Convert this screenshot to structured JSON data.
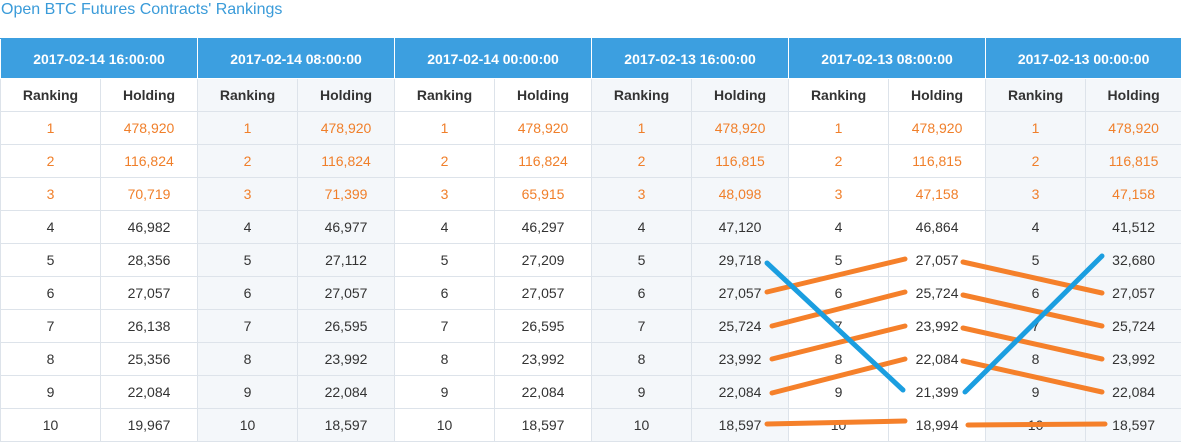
{
  "title": "Open BTC Futures Contracts' Rankings",
  "headers": {
    "ranking": "Ranking",
    "holding": "Holding"
  },
  "colors": {
    "title_link": "#3a9bd9",
    "header_bg": "#3c9fe0",
    "top3_text": "#f07f2a",
    "annotation_orange": "#f5802a",
    "annotation_blue": "#1b9ee0"
  },
  "columns": [
    {
      "date": "2017-02-14 16:00:00",
      "rows": [
        [
          "1",
          "478,920"
        ],
        [
          "2",
          "116,824"
        ],
        [
          "3",
          "70,719"
        ],
        [
          "4",
          "46,982"
        ],
        [
          "5",
          "28,356"
        ],
        [
          "6",
          "27,057"
        ],
        [
          "7",
          "26,138"
        ],
        [
          "8",
          "25,356"
        ],
        [
          "9",
          "22,084"
        ],
        [
          "10",
          "19,967"
        ]
      ]
    },
    {
      "date": "2017-02-14 08:00:00",
      "rows": [
        [
          "1",
          "478,920"
        ],
        [
          "2",
          "116,824"
        ],
        [
          "3",
          "71,399"
        ],
        [
          "4",
          "46,977"
        ],
        [
          "5",
          "27,112"
        ],
        [
          "6",
          "27,057"
        ],
        [
          "7",
          "26,595"
        ],
        [
          "8",
          "23,992"
        ],
        [
          "9",
          "22,084"
        ],
        [
          "10",
          "18,597"
        ]
      ]
    },
    {
      "date": "2017-02-14 00:00:00",
      "rows": [
        [
          "1",
          "478,920"
        ],
        [
          "2",
          "116,824"
        ],
        [
          "3",
          "65,915"
        ],
        [
          "4",
          "46,297"
        ],
        [
          "5",
          "27,209"
        ],
        [
          "6",
          "27,057"
        ],
        [
          "7",
          "26,595"
        ],
        [
          "8",
          "23,992"
        ],
        [
          "9",
          "22,084"
        ],
        [
          "10",
          "18,597"
        ]
      ]
    },
    {
      "date": "2017-02-13 16:00:00",
      "rows": [
        [
          "1",
          "478,920"
        ],
        [
          "2",
          "116,815"
        ],
        [
          "3",
          "48,098"
        ],
        [
          "4",
          "47,120"
        ],
        [
          "5",
          "29,718"
        ],
        [
          "6",
          "27,057"
        ],
        [
          "7",
          "25,724"
        ],
        [
          "8",
          "23,992"
        ],
        [
          "9",
          "22,084"
        ],
        [
          "10",
          "18,597"
        ]
      ]
    },
    {
      "date": "2017-02-13 08:00:00",
      "rows": [
        [
          "1",
          "478,920"
        ],
        [
          "2",
          "116,815"
        ],
        [
          "3",
          "47,158"
        ],
        [
          "4",
          "46,864"
        ],
        [
          "5",
          "27,057"
        ],
        [
          "6",
          "25,724"
        ],
        [
          "7",
          "23,992"
        ],
        [
          "8",
          "22,084"
        ],
        [
          "9",
          "21,399"
        ],
        [
          "10",
          "18,994"
        ]
      ]
    },
    {
      "date": "2017-02-13 00:00:00",
      "rows": [
        [
          "1",
          "478,920"
        ],
        [
          "2",
          "116,815"
        ],
        [
          "3",
          "47,158"
        ],
        [
          "4",
          "41,512"
        ],
        [
          "5",
          "32,680"
        ],
        [
          "6",
          "27,057"
        ],
        [
          "7",
          "25,724"
        ],
        [
          "8",
          "23,992"
        ],
        [
          "9",
          "22,084"
        ],
        [
          "10",
          "18,597"
        ]
      ]
    }
  ]
}
